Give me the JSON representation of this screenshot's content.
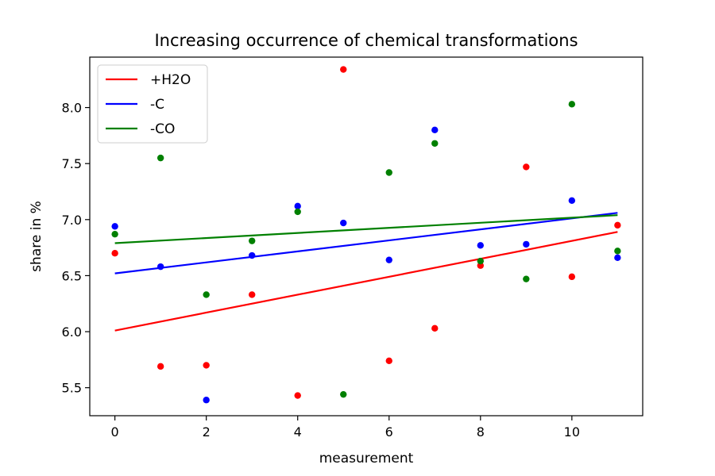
{
  "chart_data": {
    "type": "scatter",
    "title": "Increasing occurrence of chemical transformations",
    "xlabel": "measurement",
    "ylabel": "share in %",
    "xlim": [
      -0.55,
      11.55
    ],
    "ylim": [
      5.25,
      8.45
    ],
    "xticks": [
      0,
      2,
      4,
      6,
      8,
      10
    ],
    "yticks": [
      5.5,
      6.0,
      6.5,
      7.0,
      7.5,
      8.0
    ],
    "xtick_labels": [
      "0",
      "2",
      "4",
      "6",
      "8",
      "10"
    ],
    "ytick_labels": [
      "5.5",
      "6.0",
      "6.5",
      "7.0",
      "7.5",
      "8.0"
    ],
    "grid": false,
    "legend_position": "upper-left",
    "x": [
      0,
      1,
      2,
      3,
      4,
      5,
      6,
      7,
      8,
      9,
      10,
      11
    ],
    "series": [
      {
        "name": "+H2O",
        "color": "#ff0000",
        "values": [
          6.7,
          5.69,
          5.7,
          6.33,
          5.43,
          8.34,
          5.74,
          6.03,
          6.59,
          7.47,
          6.49,
          6.95
        ],
        "trend": [
          6.01,
          6.89
        ]
      },
      {
        "name": "-C",
        "color": "#0000ff",
        "values": [
          6.94,
          6.58,
          5.39,
          6.68,
          7.12,
          6.97,
          6.64,
          7.8,
          6.77,
          6.78,
          7.17,
          6.66
        ],
        "trend": [
          6.52,
          7.06
        ]
      },
      {
        "name": "-CO",
        "color": "#008000",
        "values": [
          6.87,
          7.55,
          6.33,
          6.81,
          7.07,
          5.44,
          7.42,
          7.68,
          6.63,
          6.47,
          8.03,
          6.72
        ],
        "trend": [
          6.79,
          7.04
        ]
      }
    ]
  }
}
